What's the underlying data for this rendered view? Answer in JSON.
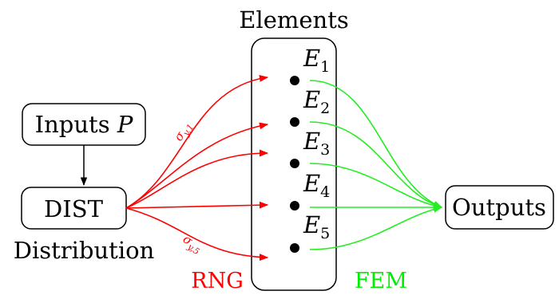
{
  "diagram": {
    "title": "Elements",
    "inputs_label": "Inputs",
    "inputs_var": "P",
    "dist_label": "DIST",
    "distribution_label": "Distribution",
    "outputs_label": "Outputs",
    "rng_label": "RNG",
    "fem_label": "FEM",
    "sigma_top": {
      "base": "σ",
      "sub": "y,1"
    },
    "sigma_bottom": {
      "base": "σ",
      "sub": "y,5"
    },
    "elements": [
      {
        "base": "E",
        "sub": "1"
      },
      {
        "base": "E",
        "sub": "2"
      },
      {
        "base": "E",
        "sub": "3"
      },
      {
        "base": "E",
        "sub": "4"
      },
      {
        "base": "E",
        "sub": "5"
      }
    ],
    "colors": {
      "rng": "#ff0000",
      "fem": "#22ee22",
      "stroke": "#000000"
    }
  }
}
